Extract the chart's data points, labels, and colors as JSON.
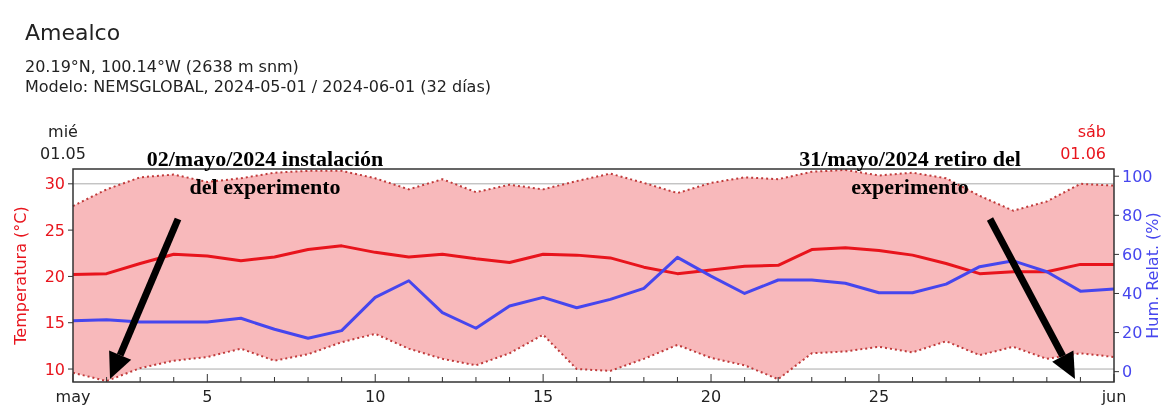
{
  "chart_data": {
    "type": "line",
    "title": "Amealco",
    "subtitle": "20.19°N, 100.14°W (2638 m snm)\nModelo: NEMSGLOBAL, 2024-05-01 / 2024-06-01 (32 días)",
    "ylabel": "Temperatura (°C)",
    "y2label": "Hum. Relat. (%)",
    "x": [
      "2024-05-01",
      "2024-05-02",
      "2024-05-03",
      "2024-05-04",
      "2024-05-05",
      "2024-05-06",
      "2024-05-07",
      "2024-05-08",
      "2024-05-09",
      "2024-05-10",
      "2024-05-11",
      "2024-05-12",
      "2024-05-13",
      "2024-05-14",
      "2024-05-15",
      "2024-05-16",
      "2024-05-17",
      "2024-05-18",
      "2024-05-19",
      "2024-05-20",
      "2024-05-21",
      "2024-05-22",
      "2024-05-23",
      "2024-05-24",
      "2024-05-25",
      "2024-05-26",
      "2024-05-27",
      "2024-05-28",
      "2024-05-29",
      "2024-05-30",
      "2024-05-31",
      "2024-06-01"
    ],
    "series": [
      {
        "color": "#e8141c",
        "values": [
          20.2,
          20.3,
          21.4,
          22.4,
          22.2,
          21.7,
          22.1,
          22.9,
          23.3,
          22.6,
          22.1,
          22.4,
          21.9,
          21.5,
          22.4,
          22.3,
          22.0,
          21.0,
          20.3,
          20.7,
          21.1,
          21.2,
          22.9,
          23.1,
          22.8,
          22.3,
          21.4,
          20.3,
          20.5,
          20.5,
          21.3,
          21.3
        ],
        "lower": [
          9.6,
          8.7,
          10.1,
          10.9,
          11.3,
          12.2,
          10.9,
          11.6,
          12.9,
          13.8,
          12.2,
          11.1,
          10.4,
          11.7,
          13.7,
          10.0,
          9.8,
          11.1,
          12.6,
          11.2,
          10.4,
          8.9,
          11.7,
          11.9,
          12.4,
          11.8,
          13.0,
          11.5,
          12.4,
          11.1,
          11.7,
          11.3
        ],
        "upper": [
          27.6,
          29.4,
          30.7,
          31.0,
          30.2,
          30.6,
          31.2,
          31.4,
          31.4,
          30.6,
          29.4,
          30.5,
          29.1,
          29.9,
          29.4,
          30.3,
          31.1,
          30.1,
          29.0,
          30.1,
          30.7,
          30.5,
          31.3,
          31.5,
          30.9,
          31.2,
          30.6,
          28.7,
          27.1,
          28.1,
          30.0,
          29.8
        ]
      },
      {
        "color": "#c03a3a",
        "line_style": "dotted",
        "values": [
          9.6,
          8.7,
          10.1,
          10.9,
          11.3,
          12.2,
          10.9,
          11.6,
          12.9,
          13.8,
          12.2,
          11.1,
          10.4,
          11.7,
          13.7,
          10.0,
          9.8,
          11.1,
          12.6,
          11.2,
          10.4,
          8.9,
          11.7,
          11.9,
          12.4,
          11.8,
          13.0,
          11.5,
          12.4,
          11.1,
          11.7,
          11.3
        ]
      },
      {
        "color": "#c03a3a",
        "line_style": "dotted",
        "values": [
          27.6,
          29.4,
          30.7,
          31.0,
          30.2,
          30.6,
          31.2,
          31.4,
          31.4,
          30.6,
          29.4,
          30.5,
          29.1,
          29.9,
          29.4,
          30.3,
          31.1,
          30.1,
          29.0,
          30.1,
          30.7,
          30.5,
          31.3,
          31.5,
          30.9,
          31.2,
          30.6,
          28.7,
          27.1,
          28.1,
          30.0,
          29.8
        ]
      },
      {
        "color": "#4646ee",
        "axis": "y2",
        "values": [
          26.1,
          26.6,
          25.4,
          25.4,
          25.4,
          27.3,
          21.7,
          17.1,
          21.0,
          38.0,
          46.5,
          30.2,
          22.2,
          33.6,
          38.0,
          32.7,
          37.0,
          42.6,
          58.5,
          48.9,
          40.0,
          46.9,
          46.9,
          45.2,
          40.4,
          40.4,
          44.8,
          53.7,
          56.7,
          51.1,
          41.2,
          42.3
        ]
      }
    ],
    "xlim": [
      "2024-05-01",
      "2024-06-01"
    ],
    "xticks": [
      {
        "value": "2024-05-01",
        "label": "may"
      },
      {
        "value": "2024-05-02",
        "label": null
      },
      {
        "value": "2024-05-03",
        "label": null
      },
      {
        "value": "2024-05-04",
        "label": null
      },
      {
        "value": "2024-05-05",
        "label": "5"
      },
      {
        "value": "2024-05-06",
        "label": null
      },
      {
        "value": "2024-05-07",
        "label": null
      },
      {
        "value": "2024-05-08",
        "label": null
      },
      {
        "value": "2024-05-09",
        "label": null
      },
      {
        "value": "2024-05-10",
        "label": "10"
      },
      {
        "value": "2024-05-11",
        "label": null
      },
      {
        "value": "2024-05-12",
        "label": null
      },
      {
        "value": "2024-05-13",
        "label": null
      },
      {
        "value": "2024-05-14",
        "label": null
      },
      {
        "value": "2024-05-15",
        "label": "15"
      },
      {
        "value": "2024-05-16",
        "label": null
      },
      {
        "value": "2024-05-17",
        "label": null
      },
      {
        "value": "2024-05-18",
        "label": null
      },
      {
        "value": "2024-05-19",
        "label": null
      },
      {
        "value": "2024-05-20",
        "label": "20"
      },
      {
        "value": "2024-05-21",
        "label": null
      },
      {
        "value": "2024-05-22",
        "label": null
      },
      {
        "value": "2024-05-23",
        "label": null
      },
      {
        "value": "2024-05-24",
        "label": null
      },
      {
        "value": "2024-05-25",
        "label": "25"
      },
      {
        "value": "2024-05-26",
        "label": null
      },
      {
        "value": "2024-05-27",
        "label": null
      },
      {
        "value": "2024-05-28",
        "label": null
      },
      {
        "value": "2024-05-29",
        "label": null
      },
      {
        "value": "2024-05-30",
        "label": null
      },
      {
        "value": "2024-05-31",
        "label": null
      },
      {
        "value": "2024-06-01",
        "label": "jun"
      }
    ],
    "ylim": [
      8.6,
      31.6
    ],
    "yticks": [
      10,
      15,
      20,
      25,
      30
    ],
    "y2lim": [
      -5.3,
      103.7
    ],
    "y2ticks": [
      0,
      20,
      40,
      60,
      80,
      100
    ],
    "grid": "y",
    "line_style": "solid",
    "annotations": [
      "mié\n01.05",
      "sáb\n01.06",
      "02/mayo/2024 instalación del experimento",
      "31/mayo/2024 retiro del experimento"
    ]
  }
}
